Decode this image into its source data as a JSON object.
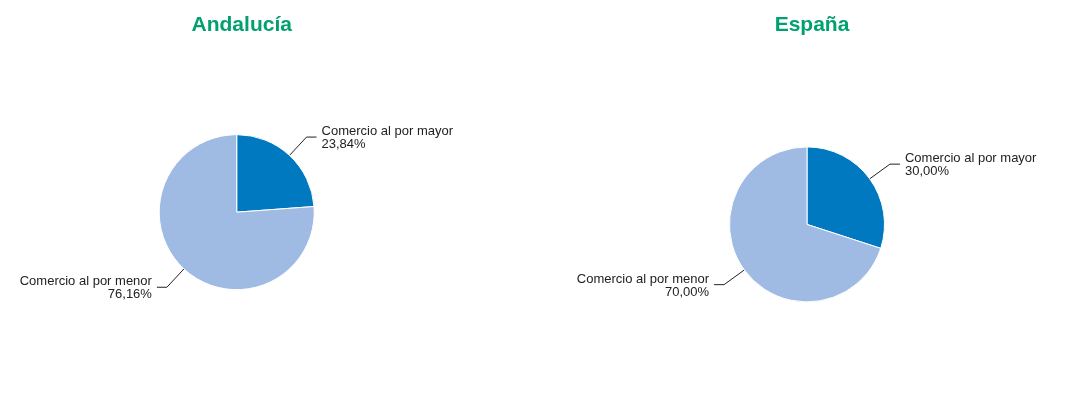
{
  "chart_data": [
    {
      "type": "pie",
      "title": "Andalucía",
      "categories": [
        "Comercio al por mayor",
        "Comercio al por menor"
      ],
      "values": [
        23.84,
        76.16
      ],
      "value_labels": [
        "23,84%",
        "76,16%"
      ],
      "colors": [
        "#0079c1",
        "#9fbbe3"
      ],
      "legend": false
    },
    {
      "type": "pie",
      "title": "España",
      "categories": [
        "Comercio al por mayor",
        "Comercio al por menor"
      ],
      "values": [
        30.0,
        70.0
      ],
      "value_labels": [
        "30,00%",
        "70,00%"
      ],
      "colors": [
        "#0079c1",
        "#9fbbe3"
      ],
      "legend": false
    }
  ]
}
